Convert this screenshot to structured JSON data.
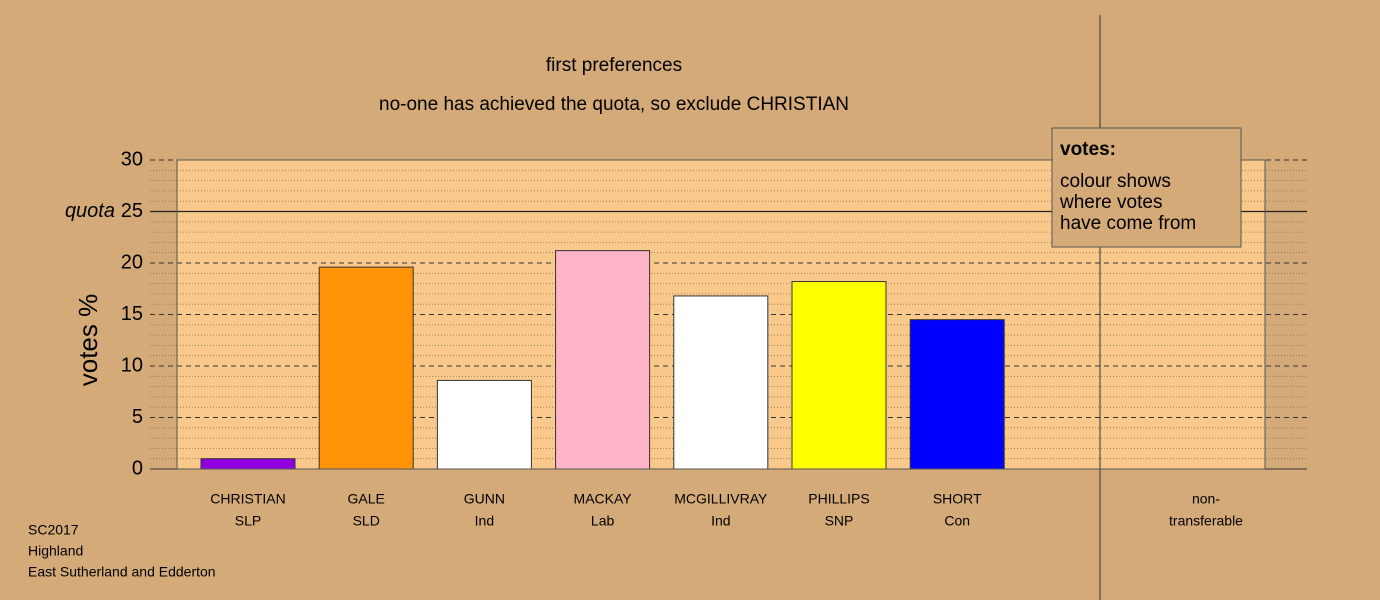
{
  "chart_data": {
    "type": "bar",
    "title": "first preferences",
    "subtitle": "no-one has achieved the quota, so exclude CHRISTIAN",
    "y_label": "votes %",
    "categories": [
      "CHRISTIAN",
      "GALE",
      "GUNN",
      "MACKAY",
      "MCGILLIVRAY",
      "PHILLIPS",
      "SHORT"
    ],
    "parties": [
      "SLP",
      "SLD",
      "Ind",
      "Lab",
      "Ind",
      "SNP",
      "Con"
    ],
    "values": [
      1.0,
      19.6,
      8.6,
      21.2,
      16.8,
      18.2,
      14.5
    ],
    "colors": [
      "#8f00e0",
      "#ff9408",
      "#ffffff",
      "#ffb4c8",
      "#ffffff",
      "#ffff00",
      "#0000ff"
    ],
    "nontransferable": [
      "non-",
      "transferable"
    ],
    "ylim": [
      0,
      30
    ],
    "yticks": [
      0,
      5,
      10,
      15,
      20,
      25,
      30
    ],
    "minor_yticks": [
      1,
      2,
      3,
      4,
      6,
      7,
      8,
      9,
      11,
      12,
      13,
      14,
      16,
      17,
      18,
      19,
      21,
      22,
      23,
      24,
      26,
      27,
      28,
      29
    ],
    "quota": {
      "value": 25,
      "label": "quota"
    },
    "legend": {
      "title": "votes:",
      "lines": [
        "colour shows",
        "where votes",
        "have come from"
      ]
    },
    "footer": [
      "SC2017",
      "Highland",
      "East Sutherland and Edderton"
    ],
    "grid": true
  }
}
